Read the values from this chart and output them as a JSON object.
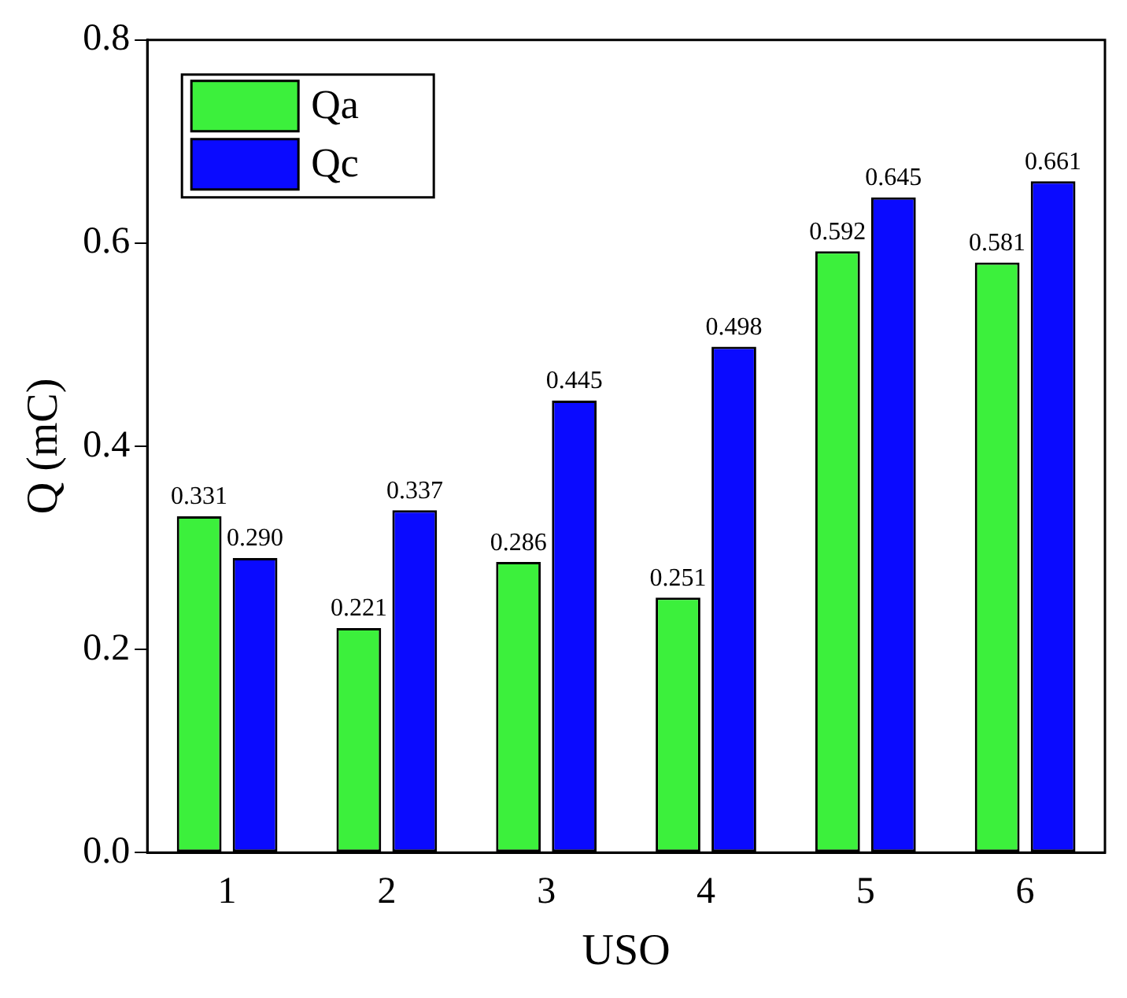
{
  "chart_data": {
    "type": "bar",
    "xlabel": "USO",
    "ylabel": "Q (mC)",
    "categories": [
      "1",
      "2",
      "3",
      "4",
      "5",
      "6"
    ],
    "series": [
      {
        "name": "Qa",
        "color": "#3cf03c",
        "values": [
          0.331,
          0.221,
          0.286,
          0.251,
          0.592,
          0.581
        ],
        "value_labels": [
          "0.331",
          "0.221",
          "0.286",
          "0.251",
          "0.592",
          "0.581"
        ]
      },
      {
        "name": "Qc",
        "color": "#0a0aff",
        "values": [
          0.29,
          0.337,
          0.445,
          0.498,
          0.645,
          0.661
        ],
        "value_labels": [
          "0.290",
          "0.337",
          "0.445",
          "0.498",
          "0.645",
          "0.661"
        ]
      }
    ],
    "ylim": [
      0,
      0.8
    ],
    "yticks": [
      {
        "value": 0,
        "label": "0.0"
      },
      0.2,
      0.4,
      0.6,
      0.8
    ],
    "legend": "top left",
    "grid": false
  }
}
